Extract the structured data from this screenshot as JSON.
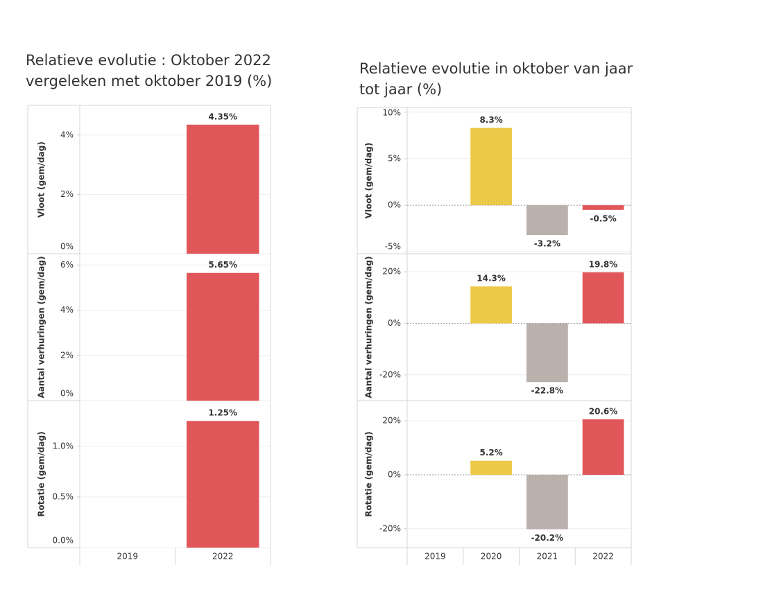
{
  "chart_data": [
    {
      "type": "bar",
      "title": "Relatieve evolutie : Oktober 2022 vergeleken met oktober 2019 (%)",
      "categories": [
        "2019",
        "2022"
      ],
      "colors": [
        null,
        "#e15759"
      ],
      "panels": [
        {
          "ylabel": "Vloot (gem/dag)",
          "values": [
            null,
            4.35
          ],
          "value_labels": [
            null,
            "4.35%"
          ],
          "ylim": [
            0,
            5
          ],
          "yticks": [
            {
              "value": 0,
              "label": "0%"
            },
            {
              "value": 2,
              "label": "2%"
            },
            {
              "value": 4,
              "label": "4%"
            }
          ]
        },
        {
          "ylabel": "Aantal verhuringen (gem/dag)",
          "values": [
            null,
            5.65
          ],
          "value_labels": [
            null,
            "5.65%"
          ],
          "ylim": [
            0,
            6.5
          ],
          "yticks": [
            {
              "value": 0,
              "label": "0%"
            },
            {
              "value": 2,
              "label": "2%"
            },
            {
              "value": 4,
              "label": "4%"
            },
            {
              "value": 6,
              "label": "6%"
            }
          ]
        },
        {
          "ylabel": "Rotatie (gem/dag)",
          "values": [
            null,
            1.25
          ],
          "value_labels": [
            null,
            "1.25%"
          ],
          "ylim": [
            0,
            1.45
          ],
          "yticks": [
            {
              "value": 0,
              "label": "0.0%"
            },
            {
              "value": 0.5,
              "label": "0.5%"
            },
            {
              "value": 1.0,
              "label": "1.0%"
            }
          ]
        }
      ]
    },
    {
      "type": "bar",
      "title": "Relatieve evolutie in oktober van jaar tot jaar (%)",
      "categories": [
        "2019",
        "2020",
        "2021",
        "2022"
      ],
      "colors": [
        null,
        "#edc948",
        "#bab0ac",
        "#e15759"
      ],
      "panels": [
        {
          "ylabel": "Vloot (gem/dag)",
          "values": [
            null,
            8.3,
            -3.2,
            -0.5
          ],
          "value_labels": [
            null,
            "8.3%",
            "-3.2%",
            "-0.5%"
          ],
          "ylim": [
            -5.2,
            10.5
          ],
          "yticks": [
            {
              "value": -5,
              "label": "-5%"
            },
            {
              "value": 0,
              "label": "0%"
            },
            {
              "value": 5,
              "label": "5%"
            },
            {
              "value": 10,
              "label": "10%"
            }
          ]
        },
        {
          "ylabel": "Aantal verhuringen (gem/dag)",
          "values": [
            null,
            14.3,
            -22.8,
            19.8
          ],
          "value_labels": [
            null,
            "14.3%",
            "-22.8%",
            "19.8%"
          ],
          "ylim": [
            -30,
            27
          ],
          "yticks": [
            {
              "value": -20,
              "label": "-20%"
            },
            {
              "value": 0,
              "label": "0%"
            },
            {
              "value": 20,
              "label": "20%"
            }
          ]
        },
        {
          "ylabel": "Rotatie (gem/dag)",
          "values": [
            null,
            5.2,
            -20.2,
            20.6
          ],
          "value_labels": [
            null,
            "5.2%",
            "-20.2%",
            "20.6%"
          ],
          "ylim": [
            -27,
            27.5
          ],
          "yticks": [
            {
              "value": -20,
              "label": "-20%"
            },
            {
              "value": 0,
              "label": "0%"
            },
            {
              "value": 20,
              "label": "20%"
            }
          ]
        }
      ]
    }
  ]
}
